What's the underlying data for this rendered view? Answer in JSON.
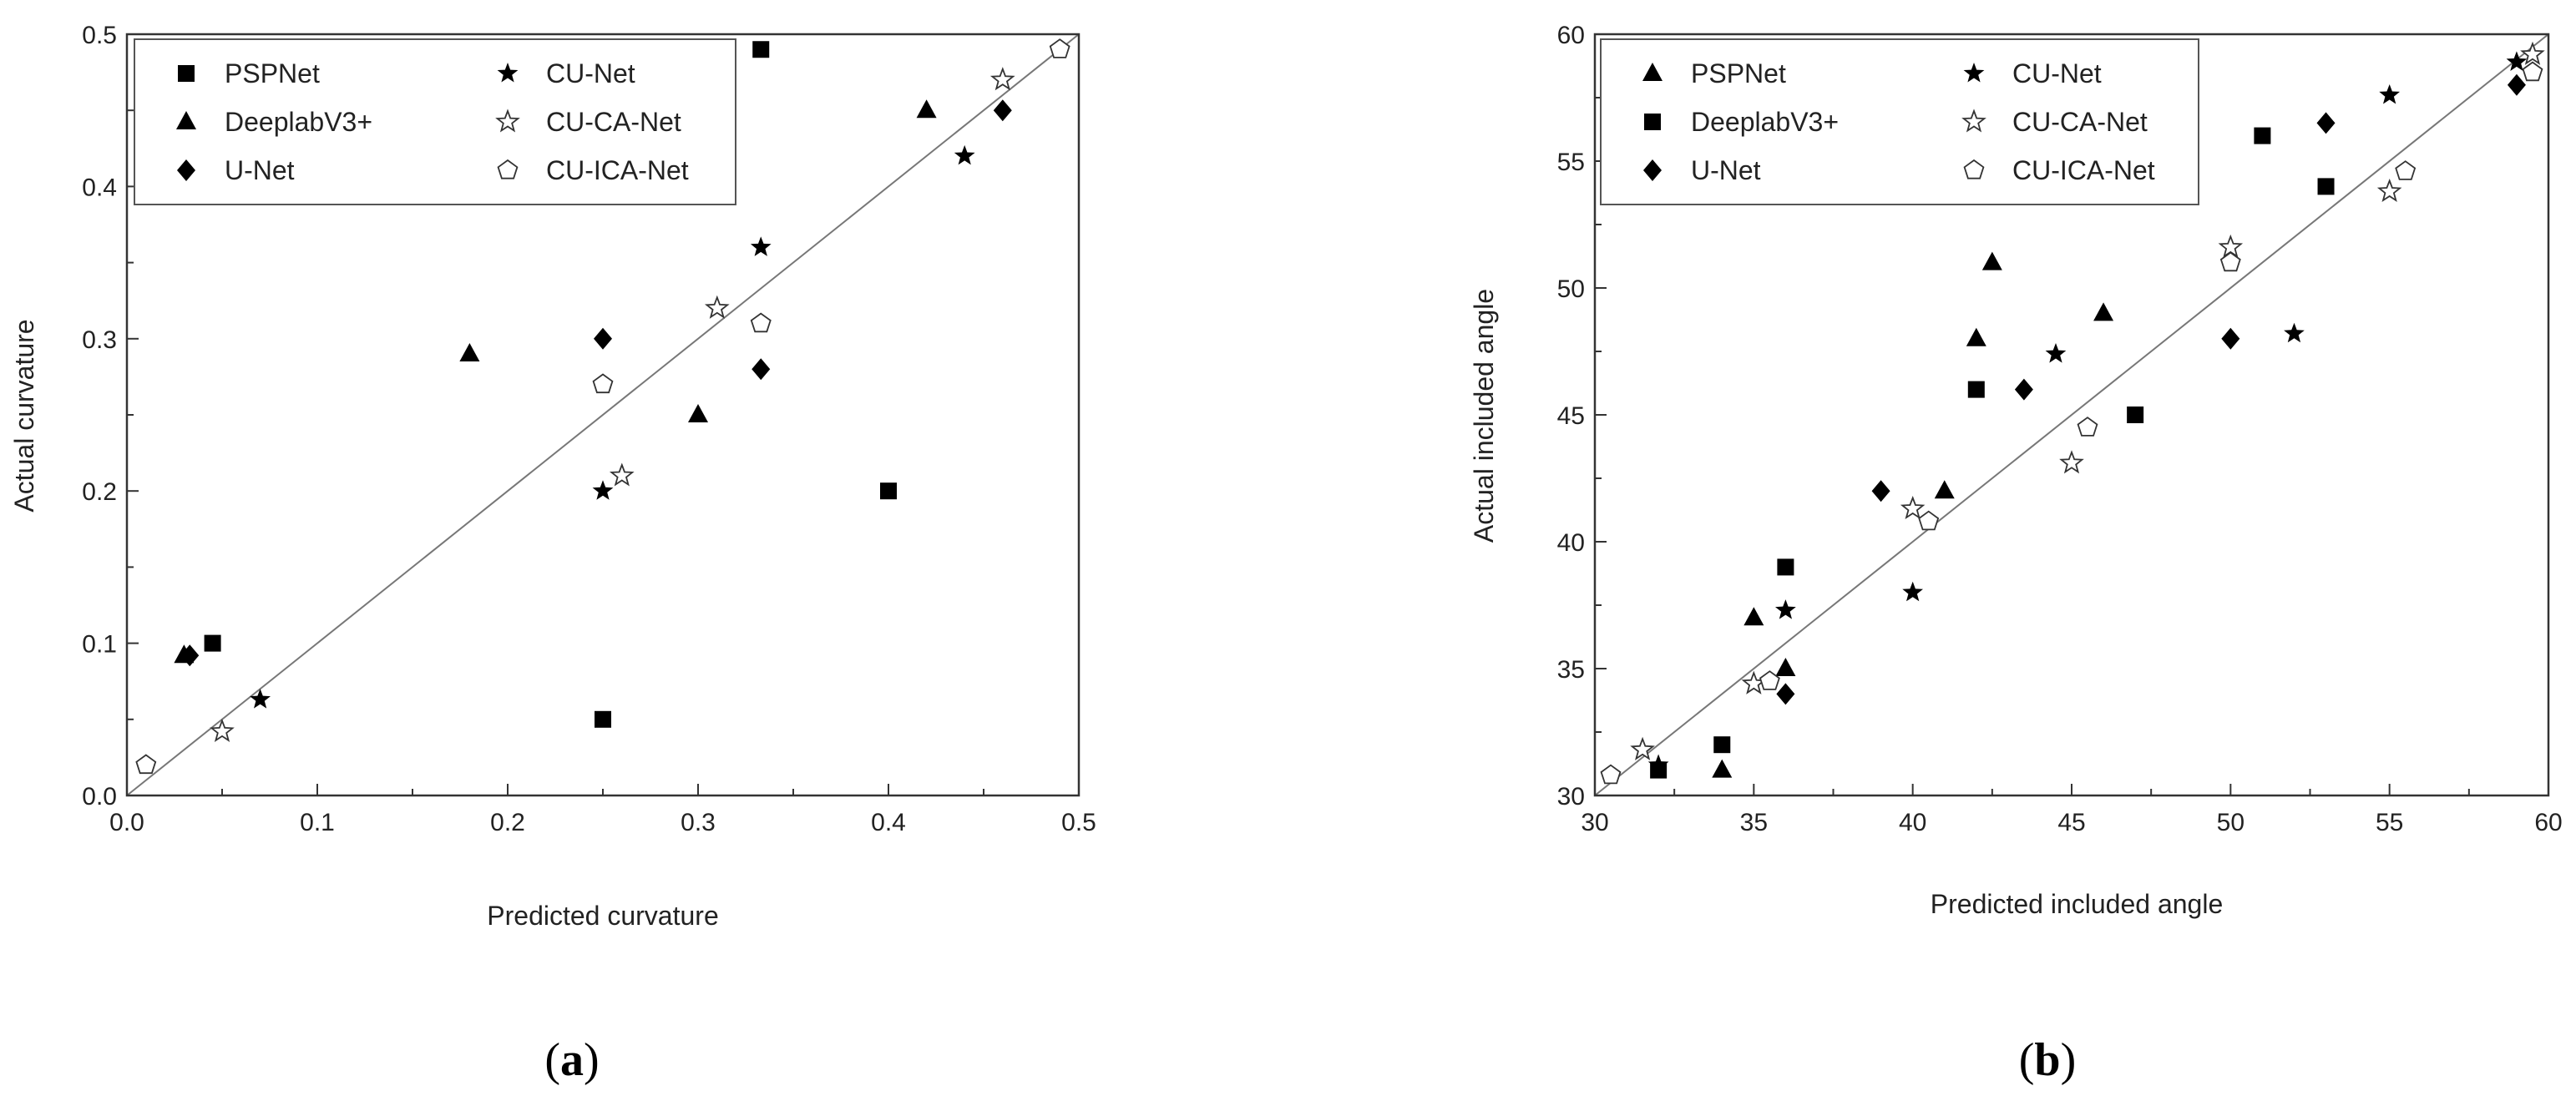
{
  "chart_data": [
    {
      "type": "scatter",
      "caption_letter": "a",
      "xlabel": "Predicted curvature",
      "ylabel": "Actual curvature",
      "xlim": [
        0.0,
        0.5
      ],
      "ylim": [
        0.0,
        0.5
      ],
      "xticks": [
        "0.0",
        "0.1",
        "0.2",
        "0.3",
        "0.4",
        "0.5"
      ],
      "yticks": [
        "0.0",
        "0.1",
        "0.2",
        "0.3",
        "0.4",
        "0.5"
      ],
      "reference_line": [
        [
          0.0,
          0.0
        ],
        [
          0.5,
          0.5
        ]
      ],
      "legend": "top-left",
      "series": [
        {
          "name": "PSPNet",
          "marker": "square",
          "x": [
            0.045,
            0.25,
            0.333,
            0.4
          ],
          "y": [
            0.1,
            0.05,
            0.49,
            0.2
          ]
        },
        {
          "name": "DeeplabV3+",
          "marker": "triangle",
          "x": [
            0.03,
            0.18,
            0.3,
            0.42
          ],
          "y": [
            0.092,
            0.29,
            0.25,
            0.45
          ]
        },
        {
          "name": "U-Net",
          "marker": "diamond",
          "x": [
            0.033,
            0.25,
            0.333,
            0.46
          ],
          "y": [
            0.092,
            0.3,
            0.28,
            0.45
          ]
        },
        {
          "name": "CU-Net",
          "marker": "star",
          "x": [
            0.07,
            0.25,
            0.333,
            0.44
          ],
          "y": [
            0.063,
            0.2,
            0.36,
            0.42
          ]
        },
        {
          "name": "CU-CA-Net",
          "marker": "star-open",
          "x": [
            0.05,
            0.26,
            0.31,
            0.46
          ],
          "y": [
            0.042,
            0.21,
            0.32,
            0.47
          ]
        },
        {
          "name": "CU-ICA-Net",
          "marker": "pentagon-open",
          "x": [
            0.01,
            0.25,
            0.333,
            0.49
          ],
          "y": [
            0.02,
            0.27,
            0.31,
            0.49
          ]
        }
      ]
    },
    {
      "type": "scatter",
      "caption_letter": "b",
      "xlabel": "Predicted included angle",
      "ylabel": "Actual included angle",
      "xlim": [
        30,
        60
      ],
      "ylim": [
        30,
        60
      ],
      "xticks": [
        "30",
        "35",
        "40",
        "45",
        "50",
        "55",
        "60"
      ],
      "yticks": [
        "30",
        "35",
        "40",
        "45",
        "50",
        "55",
        "60"
      ],
      "reference_line": [
        [
          30,
          30
        ],
        [
          60,
          60
        ]
      ],
      "legend": "top-left",
      "series": [
        {
          "name": "PSPNet",
          "marker": "triangle",
          "x": [
            34,
            35,
            36,
            41,
            42,
            42.5,
            46
          ],
          "y": [
            31,
            37,
            35,
            42,
            48,
            51,
            49
          ]
        },
        {
          "name": "DeeplabV3+",
          "marker": "square",
          "x": [
            32,
            34,
            36,
            42,
            47,
            51,
            53
          ],
          "y": [
            31,
            32,
            39,
            46,
            45,
            56,
            54
          ]
        },
        {
          "name": "U-Net",
          "marker": "diamond",
          "x": [
            36,
            39,
            43.5,
            50,
            53,
            59
          ],
          "y": [
            34,
            42,
            46,
            48,
            56.5,
            58
          ]
        },
        {
          "name": "CU-Net",
          "marker": "star",
          "x": [
            32,
            36,
            40,
            44.5,
            52,
            55,
            59
          ],
          "y": [
            31.2,
            37.3,
            38,
            47.4,
            48.2,
            57.6,
            58.9
          ]
        },
        {
          "name": "CU-CA-Net",
          "marker": "star-open",
          "x": [
            31.5,
            35,
            40,
            45,
            50,
            55,
            59.5
          ],
          "y": [
            31.8,
            34.4,
            41.3,
            43.1,
            51.6,
            53.8,
            59.2
          ]
        },
        {
          "name": "CU-ICA-Net",
          "marker": "pentagon-open",
          "x": [
            30.5,
            35.5,
            40.5,
            45.5,
            50,
            55.5,
            59.5
          ],
          "y": [
            30.8,
            34.5,
            40.8,
            44.5,
            51,
            54.6,
            58.5
          ]
        }
      ]
    }
  ]
}
